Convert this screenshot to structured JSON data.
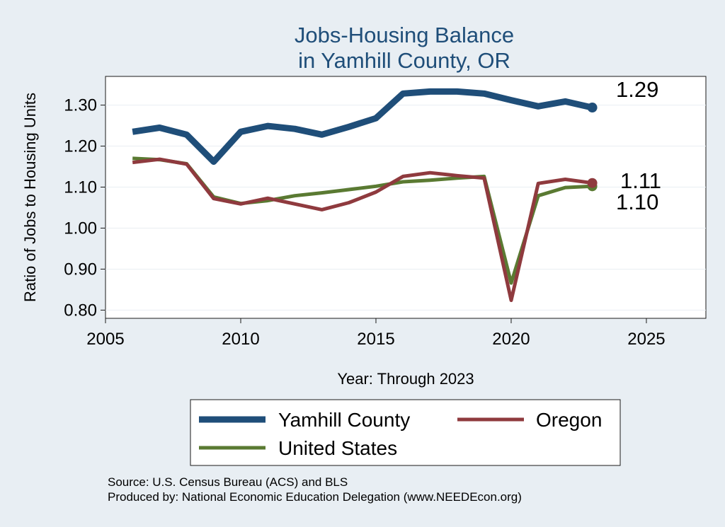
{
  "chart_data": {
    "type": "line",
    "title": [
      "Jobs-Housing Balance",
      "in Yamhill County, OR"
    ],
    "xlabel": "Year: Through 2023",
    "ylabel": "Ratio of Jobs to Housing Units",
    "xlim": [
      2005,
      2027.2
    ],
    "ylim": [
      0.78,
      1.37
    ],
    "xticks": [
      2005,
      2010,
      2015,
      2020,
      2025
    ],
    "xtick_labels": [
      "2005",
      "2010",
      "2015",
      "2020",
      "2025"
    ],
    "yticks": [
      0.8,
      0.9,
      1.0,
      1.1,
      1.2,
      1.3
    ],
    "ytick_labels": [
      "0.80",
      "0.90",
      "1.00",
      "1.10",
      "1.20",
      "1.30"
    ],
    "grid": true,
    "legend_position": "bottom",
    "x": [
      2006,
      2007,
      2008,
      2009,
      2010,
      2011,
      2012,
      2013,
      2014,
      2015,
      2016,
      2017,
      2018,
      2019,
      2020,
      2021,
      2022,
      2023
    ],
    "series": [
      {
        "name": "Yamhill County",
        "color": "#1f4e79",
        "values": [
          1.235,
          1.245,
          1.228,
          1.162,
          1.235,
          1.249,
          1.242,
          1.228,
          1.247,
          1.268,
          1.328,
          1.333,
          1.333,
          1.328,
          1.312,
          1.297,
          1.309,
          1.294
        ],
        "end_label": "1.29"
      },
      {
        "name": "Oregon",
        "color": "#8f3a3e",
        "values": [
          1.16,
          1.168,
          1.156,
          1.072,
          1.059,
          1.073,
          1.059,
          1.045,
          1.062,
          1.088,
          1.126,
          1.135,
          1.128,
          1.122,
          0.824,
          1.109,
          1.119,
          1.11
        ],
        "end_label": "1.11"
      },
      {
        "name": "United States",
        "color": "#5a7a32",
        "values": [
          1.17,
          1.167,
          1.157,
          1.076,
          1.06,
          1.067,
          1.079,
          1.086,
          1.094,
          1.102,
          1.113,
          1.117,
          1.122,
          1.126,
          0.866,
          1.079,
          1.099,
          1.102
        ],
        "end_label": "1.10"
      }
    ],
    "source_lines": [
      "Source: U.S. Census Bureau (ACS) and BLS",
      "Produced by: National Economic Education Delegation (www.NEEDEcon.org)"
    ]
  }
}
